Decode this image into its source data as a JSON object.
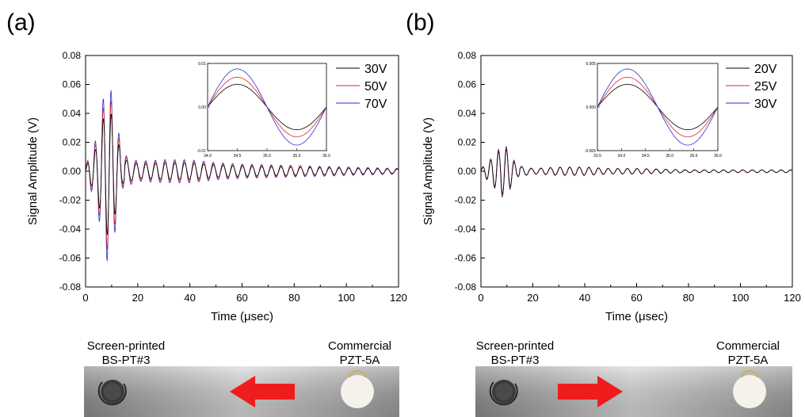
{
  "panels": [
    {
      "label": "(a)",
      "xlabel": "Time (μsec)",
      "ylabel": "Signal Amplitude (V)",
      "xticks": [
        "0",
        "20",
        "40",
        "60",
        "80",
        "100",
        "120"
      ],
      "yticks": [
        "0.08",
        "0.06",
        "0.04",
        "0.02",
        "0.00",
        "-0.02",
        "-0.04",
        "-0.06",
        "-0.08"
      ],
      "legend": [
        "30V",
        "50V",
        "70V"
      ],
      "inset_xticks": [
        "34.0",
        "34.5",
        "35.0",
        "35.5",
        "36.0"
      ],
      "inset_yticks": [
        "0.01",
        "0.00",
        "-0.01"
      ],
      "left_caption_1": "Screen-printed",
      "left_caption_2": "BS-PT#3",
      "right_caption_1": "Commercial",
      "right_caption_2": "PZT-5A",
      "arrow_direction": "left"
    },
    {
      "label": "(b)",
      "xlabel": "Time (μsec)",
      "ylabel": "Signal Amplitude (V)",
      "xticks": [
        "0",
        "20",
        "40",
        "60",
        "80",
        "100",
        "120"
      ],
      "yticks": [
        "0.08",
        "0.06",
        "0.04",
        "0.02",
        "0.00",
        "-0.02",
        "-0.04",
        "-0.06",
        "-0.08"
      ],
      "legend": [
        "20V",
        "25V",
        "30V"
      ],
      "inset_xticks": [
        "33.5",
        "34.0",
        "34.5",
        "35.0",
        "35.5",
        "36.0"
      ],
      "inset_yticks": [
        "0.005",
        "0.000",
        "-0.005"
      ],
      "left_caption_1": "Screen-printed",
      "left_caption_2": "BS-PT#3",
      "right_caption_1": "Commercial",
      "right_caption_2": "PZT-5A",
      "arrow_direction": "right"
    }
  ],
  "colors": {
    "series1": "#000000",
    "series2": "#d42a2a",
    "series3": "#2a2ad4",
    "arrow": "#ee1c1c"
  },
  "chart_data": [
    {
      "type": "line",
      "title": "",
      "xlabel": "Time (μsec)",
      "ylabel": "Signal Amplitude (V)",
      "xlim": [
        0,
        120
      ],
      "ylim": [
        -0.08,
        0.08
      ],
      "series": [
        {
          "name": "30V",
          "peak": 0.045
        },
        {
          "name": "50V",
          "peak": 0.055
        },
        {
          "name": "70V",
          "peak": 0.063
        }
      ],
      "envelope": {
        "x": [
          0,
          4,
          8,
          10,
          12,
          14,
          20,
          30,
          40,
          50,
          60,
          80,
          100,
          120
        ],
        "y": [
          0.004,
          0.022,
          0.063,
          0.055,
          0.035,
          0.012,
          0.007,
          0.008,
          0.008,
          0.006,
          0.005,
          0.004,
          0.003,
          0.002
        ]
      },
      "inset": {
        "xlim": [
          34.0,
          36.0
        ],
        "ylim": [
          -0.01,
          0.01
        ]
      },
      "legend_position": "top-right"
    },
    {
      "type": "line",
      "title": "",
      "xlabel": "Time (μsec)",
      "ylabel": "Signal Amplitude (V)",
      "xlim": [
        0,
        120
      ],
      "ylim": [
        -0.08,
        0.08
      ],
      "series": [
        {
          "name": "20V",
          "peak": 0.016
        },
        {
          "name": "25V",
          "peak": 0.017
        },
        {
          "name": "30V",
          "peak": 0.018
        }
      ],
      "envelope": {
        "x": [
          0,
          4,
          8,
          10,
          12,
          14,
          20,
          30,
          40,
          50,
          60,
          80,
          100,
          120
        ],
        "y": [
          0.002,
          0.009,
          0.018,
          0.017,
          0.01,
          0.004,
          0.002,
          0.003,
          0.003,
          0.002,
          0.002,
          0.001,
          0.001,
          0.001
        ]
      },
      "inset": {
        "xlim": [
          33.5,
          36.0
        ],
        "ylim": [
          -0.005,
          0.005
        ]
      },
      "legend_position": "top-right"
    }
  ]
}
